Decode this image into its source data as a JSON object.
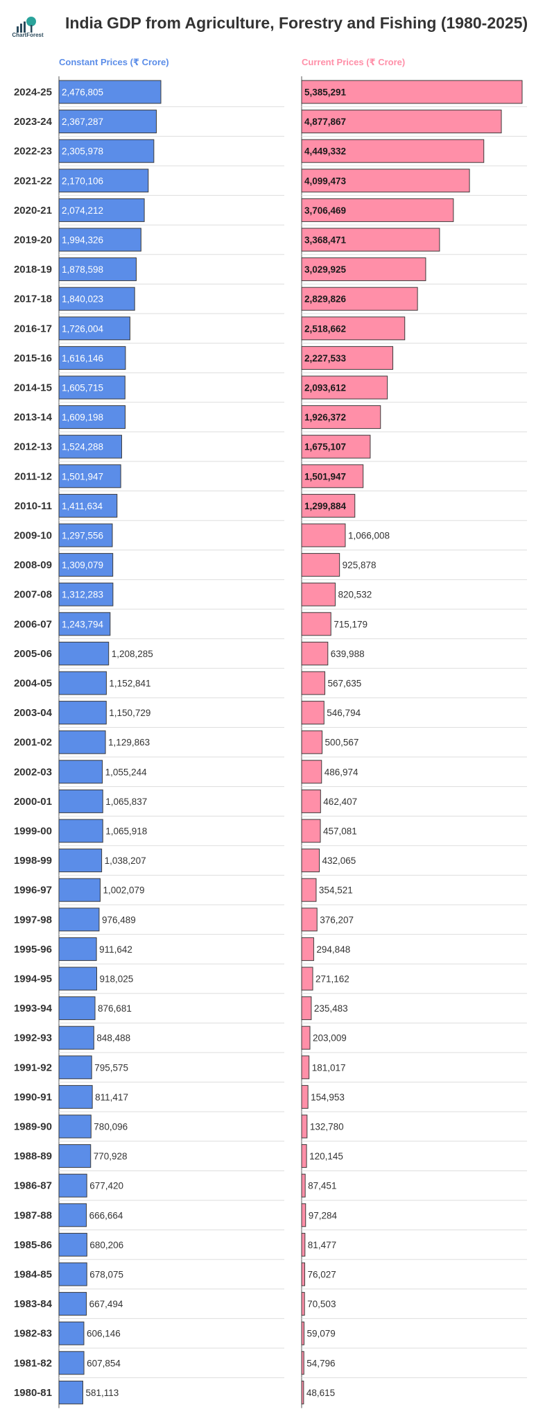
{
  "header": {
    "title": "India GDP from Agriculture, Forestry and Fishing (1980-2025)",
    "logo_text": "ChartForest"
  },
  "chart_data": {
    "type": "bar",
    "orientation": "horizontal",
    "title": "India GDP from Agriculture, Forestry and Fishing (1980-2025)",
    "categories": [
      "2024-25",
      "2023-24",
      "2022-23",
      "2021-22",
      "2020-21",
      "2019-20",
      "2018-19",
      "2017-18",
      "2016-17",
      "2015-16",
      "2014-15",
      "2013-14",
      "2012-13",
      "2011-12",
      "2010-11",
      "2009-10",
      "2008-09",
      "2007-08",
      "2006-07",
      "2005-06",
      "2004-05",
      "2003-04",
      "2001-02",
      "2002-03",
      "2000-01",
      "1999-00",
      "1998-99",
      "1996-97",
      "1997-98",
      "1995-96",
      "1994-95",
      "1993-94",
      "1992-93",
      "1991-92",
      "1990-91",
      "1989-90",
      "1988-89",
      "1986-87",
      "1987-88",
      "1985-86",
      "1984-85",
      "1983-84",
      "1982-83",
      "1981-82",
      "1980-81"
    ],
    "series": [
      {
        "name": "Constant Prices (₹ Crore)",
        "color": "#5b8de8",
        "values": [
          2476805,
          2367287,
          2305978,
          2170106,
          2074212,
          1994326,
          1878598,
          1840023,
          1726004,
          1616146,
          1605715,
          1609198,
          1524288,
          1501947,
          1411634,
          1297556,
          1309079,
          1312283,
          1243794,
          1208285,
          1152841,
          1150729,
          1129863,
          1055244,
          1065837,
          1065918,
          1038207,
          1002079,
          976489,
          911642,
          918025,
          876681,
          848488,
          795575,
          811417,
          780096,
          770928,
          677420,
          666664,
          680206,
          678075,
          667494,
          606146,
          607854,
          581113
        ],
        "labels": [
          "2,476,805",
          "2,367,287",
          "2,305,978",
          "2,170,106",
          "2,074,212",
          "1,994,326",
          "1,878,598",
          "1,840,023",
          "1,726,004",
          "1,616,146",
          "1,605,715",
          "1,609,198",
          "1,524,288",
          "1,501,947",
          "1,411,634",
          "1,297,556",
          "1,309,079",
          "1,312,283",
          "1,243,794",
          "1,208,285",
          "1,152,841",
          "1,150,729",
          "1,129,863",
          "1,055,244",
          "1,065,837",
          "1,065,918",
          "1,038,207",
          "1,002,079",
          "976,489",
          "911,642",
          "918,025",
          "876,681",
          "848,488",
          "795,575",
          "811,417",
          "780,096",
          "770,928",
          "677,420",
          "666,664",
          "680,206",
          "678,075",
          "667,494",
          "606,146",
          "607,854",
          "581,113"
        ]
      },
      {
        "name": "Current Prices (₹ Crore)",
        "color": "#ff8fa8",
        "values": [
          5385291,
          4877867,
          4449332,
          4099473,
          3706469,
          3368471,
          3029925,
          2829826,
          2518662,
          2227533,
          2093612,
          1926372,
          1675107,
          1501947,
          1299884,
          1066008,
          925878,
          820532,
          715179,
          639988,
          567635,
          546794,
          500567,
          486974,
          462407,
          457081,
          432065,
          354521,
          376207,
          294848,
          271162,
          235483,
          203009,
          181017,
          154953,
          132780,
          120145,
          87451,
          97284,
          81477,
          76027,
          70503,
          59079,
          54796,
          48615
        ],
        "labels": [
          "5,385,291",
          "4,877,867",
          "4,449,332",
          "4,099,473",
          "3,706,469",
          "3,368,471",
          "3,029,925",
          "2,829,826",
          "2,518,662",
          "2,227,533",
          "2,093,612",
          "1,926,372",
          "1,675,107",
          "1,501,947",
          "1,299,884",
          "1,066,008",
          "925,878",
          "820,532",
          "715,179",
          "639,988",
          "567,635",
          "546,794",
          "500,567",
          "486,974",
          "462,407",
          "457,081",
          "432,065",
          "354,521",
          "376,207",
          "294,848",
          "271,162",
          "235,483",
          "203,009",
          "181,017",
          "154,953",
          "132,780",
          "120,145",
          "87,451",
          "97,284",
          "81,477",
          "76,027",
          "70,503",
          "59,079",
          "54,796",
          "48,615"
        ]
      }
    ],
    "grid": false,
    "legend": "panel headers"
  }
}
